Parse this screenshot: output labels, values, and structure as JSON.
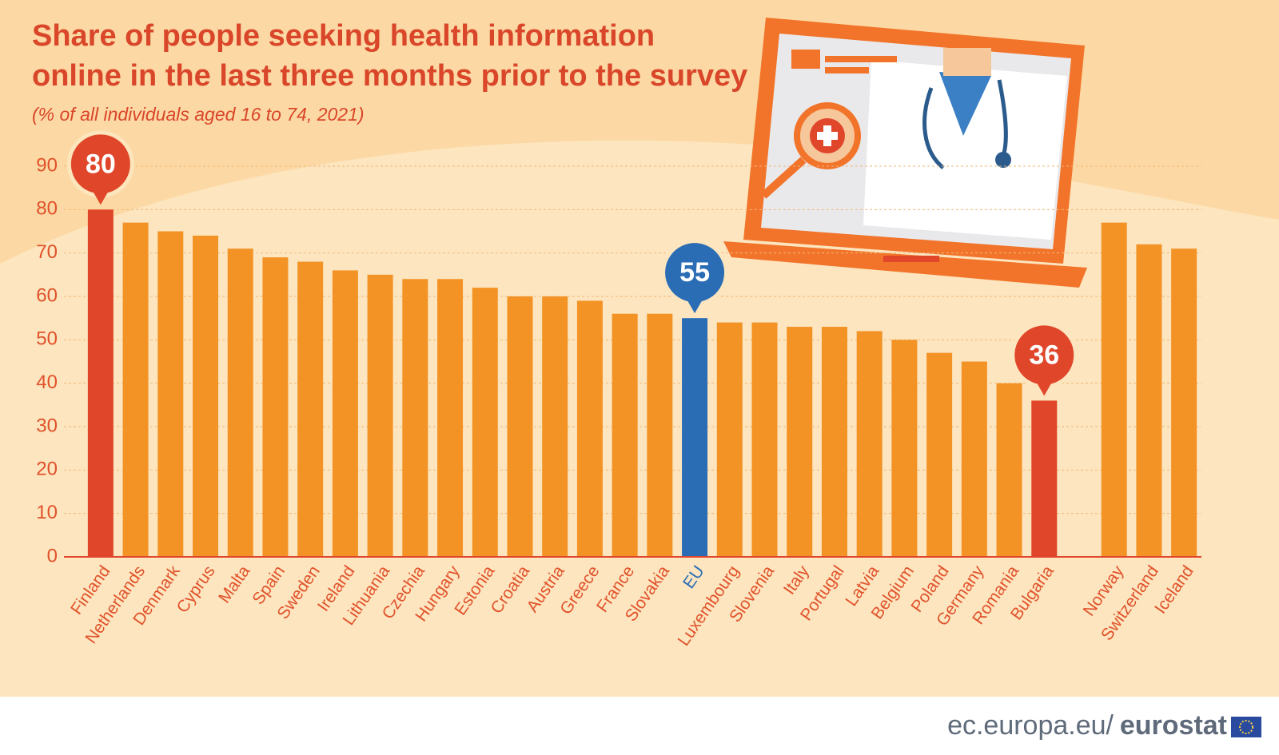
{
  "chart_data": {
    "type": "bar",
    "title": [
      "Share of people seeking health information",
      "online in the last three months prior to the survey"
    ],
    "subtitle": "(% of all individuals aged 16 to 74, 2021)",
    "categories": [
      "Finland",
      "Netherlands",
      "Denmark",
      "Cyprus",
      "Malta",
      "Spain",
      "Sweden",
      "Ireland",
      "Lithuania",
      "Czechia",
      "Hungary",
      "Estonia",
      "Croatia",
      "Austria",
      "Greece",
      "France",
      "Slovakia",
      "EU",
      "Luxembourg",
      "Slovenia",
      "Italy",
      "Portugal",
      "Latvia",
      "Belgium",
      "Poland",
      "Germany",
      "Romania",
      "Bulgaria",
      null,
      "Norway",
      "Switzerland",
      "Iceland"
    ],
    "values": [
      80,
      77,
      75,
      74,
      71,
      69,
      68,
      66,
      65,
      64,
      64,
      62,
      60,
      60,
      59,
      56,
      56,
      55,
      54,
      54,
      53,
      53,
      52,
      50,
      47,
      45,
      40,
      36,
      null,
      77,
      72,
      71
    ],
    "color": "#f39325",
    "extreme_color": "#e0462a",
    "average_color": "#2a6db5",
    "label_color": "#e0522a",
    "colors": [
      "#e0462a",
      "#f39325",
      "#f39325",
      "#f39325",
      "#f39325",
      "#f39325",
      "#f39325",
      "#f39325",
      "#f39325",
      "#f39325",
      "#f39325",
      "#f39325",
      "#f39325",
      "#f39325",
      "#f39325",
      "#f39325",
      "#f39325",
      "#2a6db5",
      "#f39325",
      "#f39325",
      "#f39325",
      "#f39325",
      "#f39325",
      "#f39325",
      "#f39325",
      "#f39325",
      "#f39325",
      "#e0462a",
      null,
      "#f39325",
      "#f39325",
      "#f39325"
    ],
    "ylim": [
      0,
      90
    ],
    "yticks": [
      0,
      10,
      20,
      30,
      40,
      50,
      60,
      70,
      80,
      90
    ],
    "grid": true
  },
  "footer": {
    "site": "ec.europa.eu/",
    "brand": "eurostat"
  }
}
